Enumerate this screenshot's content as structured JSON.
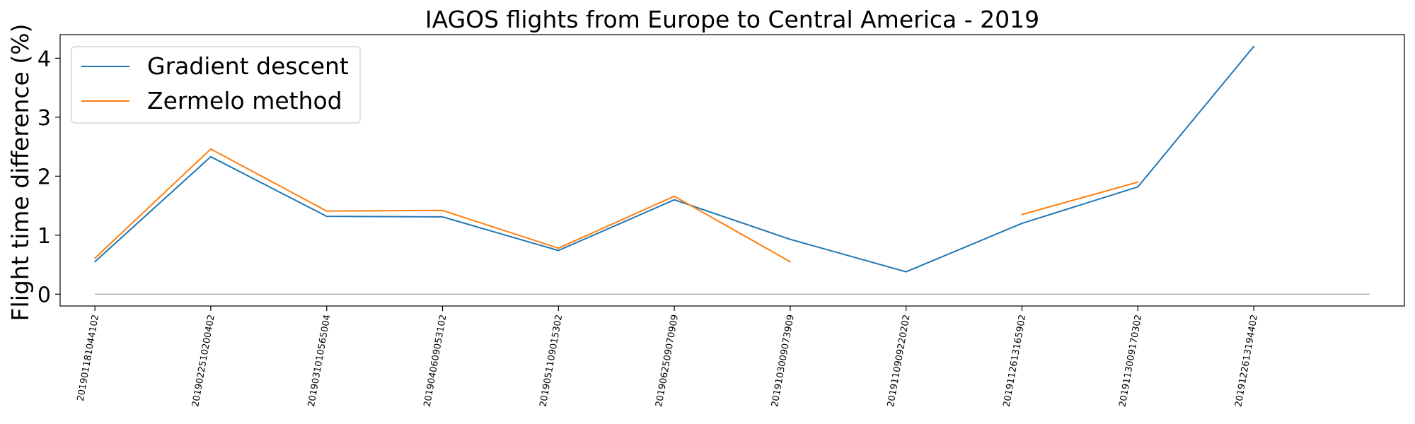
{
  "chart_data": {
    "type": "line",
    "title": "IAGOS flights from Europe to Central America - 2019",
    "ylabel": "Flight time difference (%)",
    "xlabel": "",
    "categories": [
      "201901181044102",
      "201902251020040​2",
      "201903101056500​4",
      "201904060905310​2",
      "201905110901530​2",
      "201906250907090​9",
      "201910300907390​9",
      "201911090922020​2",
      "201911261316590​2",
      "201911300917030​2",
      "201912261319440​2"
    ],
    "xlim_index": [
      -0.3,
      11.3
    ],
    "ylim": [
      -0.2,
      4.4
    ],
    "yticks": [
      0,
      1,
      2,
      3,
      4
    ],
    "legend_position": "upper-left",
    "grid": false,
    "reference_line": {
      "y": 0,
      "x_range_index": [
        0,
        11
      ],
      "color": "#b0b0b0"
    },
    "series": [
      {
        "name": "Gradient descent",
        "color": "#1f77b4",
        "values": [
          0.55,
          2.33,
          1.32,
          1.31,
          0.74,
          1.6,
          0.93,
          0.38,
          1.2,
          1.82,
          4.2
        ]
      },
      {
        "name": "Zermelo method",
        "color": "#ff7f0e",
        "values": [
          0.61,
          2.46,
          1.41,
          1.42,
          0.78,
          1.66,
          0.55,
          null,
          1.35,
          1.9,
          null
        ]
      }
    ]
  }
}
